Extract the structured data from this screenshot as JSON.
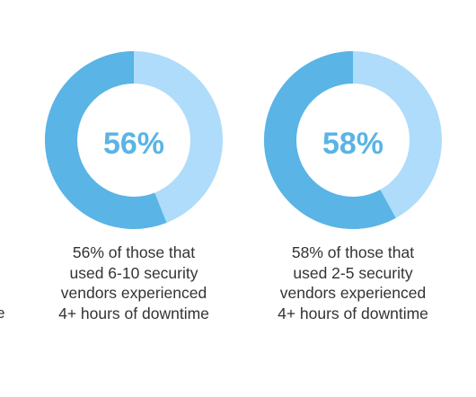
{
  "edge_fragment": "e",
  "colors": {
    "highlight": "#5ab4e5",
    "remainder": "#aedcfa",
    "label": "#5ab4e5",
    "caption": "#333333"
  },
  "chart_data": [
    {
      "type": "pie",
      "title": "",
      "slices": [
        {
          "label": "experienced 4+ hours of downtime",
          "value": 56
        },
        {
          "label": "other",
          "value": 44
        }
      ],
      "center_label": "56%",
      "caption_lines": [
        "56% of those that",
        "used 6-10 security",
        "vendors experienced",
        "4+ hours of downtime"
      ]
    },
    {
      "type": "pie",
      "title": "",
      "slices": [
        {
          "label": "experienced 4+ hours of downtime",
          "value": 58
        },
        {
          "label": "other",
          "value": 42
        }
      ],
      "center_label": "58%",
      "caption_lines": [
        "58% of those that",
        "used 2-5 security",
        "vendors experienced",
        "4+ hours of downtime"
      ]
    }
  ]
}
